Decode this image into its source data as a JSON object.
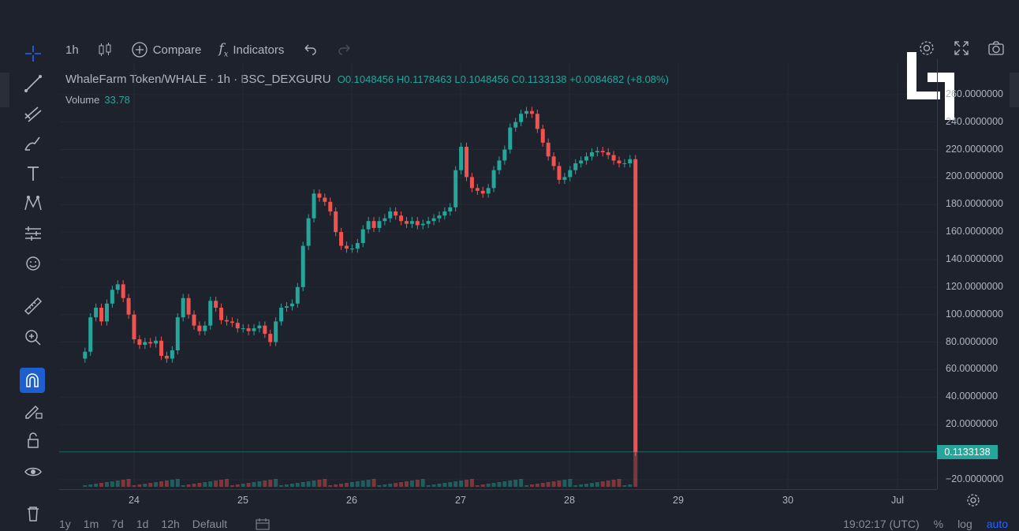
{
  "toolbar": {
    "interval": "1h",
    "compare_label": "Compare",
    "indicators_label": "Indicators"
  },
  "legend": {
    "symbol": "WhaleFarm Token/WHALE",
    "interval": "1h",
    "exchange": "BSC_DEXGURU",
    "ohlc": "O0.1048456  H0.1178463  L0.1048456  C0.1133138  +0.0084682  (+8.08%)",
    "volume_label": "Volume",
    "volume_value": "33.78"
  },
  "price_axis": {
    "ticks": [
      "260.0000000",
      "240.0000000",
      "220.0000000",
      "200.0000000",
      "180.0000000",
      "160.0000000",
      "140.0000000",
      "120.0000000",
      "100.0000000",
      "80.0000000",
      "60.0000000",
      "40.0000000",
      "20.0000000",
      "−20.0000000"
    ],
    "last_price": "0.1133138"
  },
  "time_axis": {
    "ticks": [
      "24",
      "25",
      "26",
      "27",
      "28",
      "29",
      "30",
      "Jul"
    ]
  },
  "bottom_bar": {
    "ranges": [
      "1y",
      "1m",
      "7d",
      "1d",
      "12h",
      "Default"
    ],
    "time": "19:02:17 (UTC)",
    "percent": "%",
    "log": "log",
    "auto": "auto"
  },
  "colors": {
    "up": "#26a69a",
    "down": "#ef5350",
    "background": "#1e222d",
    "accent": "#1e5fcf"
  },
  "chart_data": {
    "type": "candlestick",
    "title": "",
    "xlabel": "",
    "ylabel": "",
    "ylim": [
      -25,
      265
    ],
    "x_range": [
      23.3,
      31.3
    ],
    "closes": [
      [
        23.55,
        73
      ],
      [
        23.6,
        98
      ],
      [
        23.65,
        105
      ],
      [
        23.7,
        95
      ],
      [
        23.75,
        108
      ],
      [
        23.8,
        118
      ],
      [
        23.85,
        122
      ],
      [
        23.9,
        112
      ],
      [
        23.95,
        100
      ],
      [
        24.0,
        82
      ],
      [
        24.05,
        78
      ],
      [
        24.1,
        80
      ],
      [
        24.15,
        79
      ],
      [
        24.2,
        81
      ],
      [
        24.25,
        70
      ],
      [
        24.3,
        68
      ],
      [
        24.35,
        74
      ],
      [
        24.4,
        98
      ],
      [
        24.45,
        112
      ],
      [
        24.5,
        100
      ],
      [
        24.55,
        92
      ],
      [
        24.6,
        88
      ],
      [
        24.65,
        92
      ],
      [
        24.7,
        110
      ],
      [
        24.75,
        105
      ],
      [
        24.8,
        96
      ],
      [
        24.85,
        95
      ],
      [
        24.9,
        94
      ],
      [
        24.95,
        90
      ],
      [
        25.0,
        90
      ],
      [
        25.05,
        88
      ],
      [
        25.1,
        90
      ],
      [
        25.15,
        92
      ],
      [
        25.2,
        86
      ],
      [
        25.25,
        80
      ],
      [
        25.3,
        95
      ],
      [
        25.35,
        105
      ],
      [
        25.4,
        106
      ],
      [
        25.45,
        108
      ],
      [
        25.5,
        120
      ],
      [
        25.55,
        150
      ],
      [
        25.6,
        170
      ],
      [
        25.65,
        188
      ],
      [
        25.7,
        185
      ],
      [
        25.75,
        182
      ],
      [
        25.8,
        175
      ],
      [
        25.85,
        160
      ],
      [
        25.9,
        150
      ],
      [
        25.95,
        148
      ],
      [
        26.0,
        148
      ],
      [
        26.05,
        152
      ],
      [
        26.1,
        162
      ],
      [
        26.15,
        168
      ],
      [
        26.2,
        163
      ],
      [
        26.25,
        168
      ],
      [
        26.3,
        170
      ],
      [
        26.35,
        175
      ],
      [
        26.4,
        172
      ],
      [
        26.45,
        168
      ],
      [
        26.5,
        166
      ],
      [
        26.55,
        168
      ],
      [
        26.6,
        165
      ],
      [
        26.65,
        166
      ],
      [
        26.7,
        168
      ],
      [
        26.75,
        170
      ],
      [
        26.8,
        172
      ],
      [
        26.85,
        175
      ],
      [
        26.9,
        178
      ],
      [
        26.95,
        205
      ],
      [
        27.0,
        222
      ],
      [
        27.05,
        200
      ],
      [
        27.1,
        192
      ],
      [
        27.15,
        190
      ],
      [
        27.2,
        188
      ],
      [
        27.25,
        192
      ],
      [
        27.3,
        205
      ],
      [
        27.35,
        212
      ],
      [
        27.4,
        220
      ],
      [
        27.45,
        236
      ],
      [
        27.5,
        240
      ],
      [
        27.55,
        246
      ],
      [
        27.6,
        248
      ],
      [
        27.65,
        246
      ],
      [
        27.7,
        235
      ],
      [
        27.75,
        225
      ],
      [
        27.8,
        215
      ],
      [
        27.85,
        208
      ],
      [
        27.9,
        198
      ],
      [
        27.95,
        200
      ],
      [
        28.0,
        205
      ],
      [
        28.05,
        210
      ],
      [
        28.1,
        212
      ],
      [
        28.15,
        215
      ],
      [
        28.2,
        218
      ],
      [
        28.25,
        219
      ],
      [
        28.3,
        218
      ],
      [
        28.35,
        216
      ],
      [
        28.4,
        212
      ],
      [
        28.45,
        210
      ],
      [
        28.5,
        210
      ],
      [
        28.55,
        213
      ],
      [
        28.6,
        0.11
      ]
    ],
    "volume_series": "volume"
  }
}
